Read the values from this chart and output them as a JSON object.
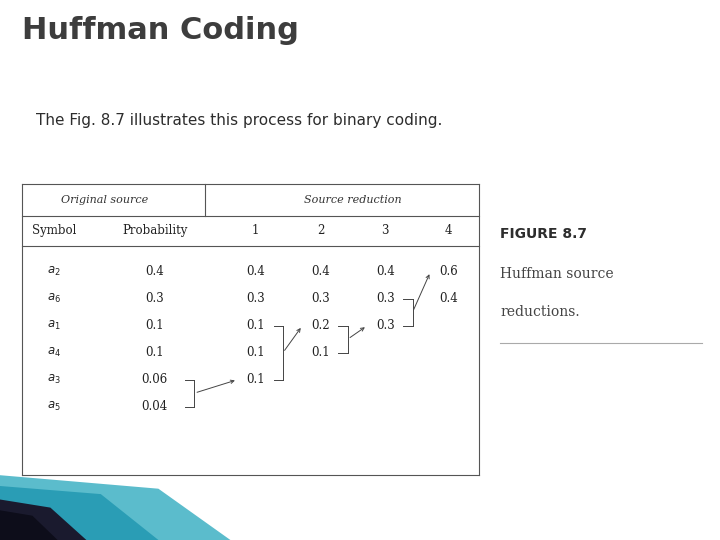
{
  "title": "Huffman Coding",
  "subtitle": "The Fig. 8.7 illustrates this process for binary coding.",
  "title_fontsize": 22,
  "subtitle_fontsize": 11,
  "bg_color": "#ffffff",
  "title_color": "#3d3d3d",
  "subtitle_color": "#2d2d2d",
  "table": {
    "orig_header": "Original source",
    "red_header": "Source reduction",
    "symbols": [
      "a_2",
      "a_6",
      "a_1",
      "a_4",
      "a_3",
      "a_5"
    ],
    "prob": [
      "0.4",
      "0.3",
      "0.1",
      "0.1",
      "0.06",
      "0.04"
    ],
    "col1": [
      "0.4",
      "0.3",
      "0.1",
      "0.1",
      "0.1",
      null
    ],
    "col2": [
      "0.4",
      "0.3",
      "0.2",
      "0.1",
      null,
      null
    ],
    "col3": [
      "0.4",
      "0.3",
      "0.3",
      null,
      null,
      null
    ],
    "col4": [
      "0.6",
      "0.4",
      null,
      null,
      null,
      null
    ]
  },
  "figure_caption_title": "FIGURE 8.7",
  "figure_caption_line1": "Huffman source",
  "figure_caption_line2": "reductions.",
  "teal1": "#5bbccc",
  "teal2": "#2a9db5",
  "dark1": "#1a1a2e",
  "dark2": "#0d0d1a"
}
